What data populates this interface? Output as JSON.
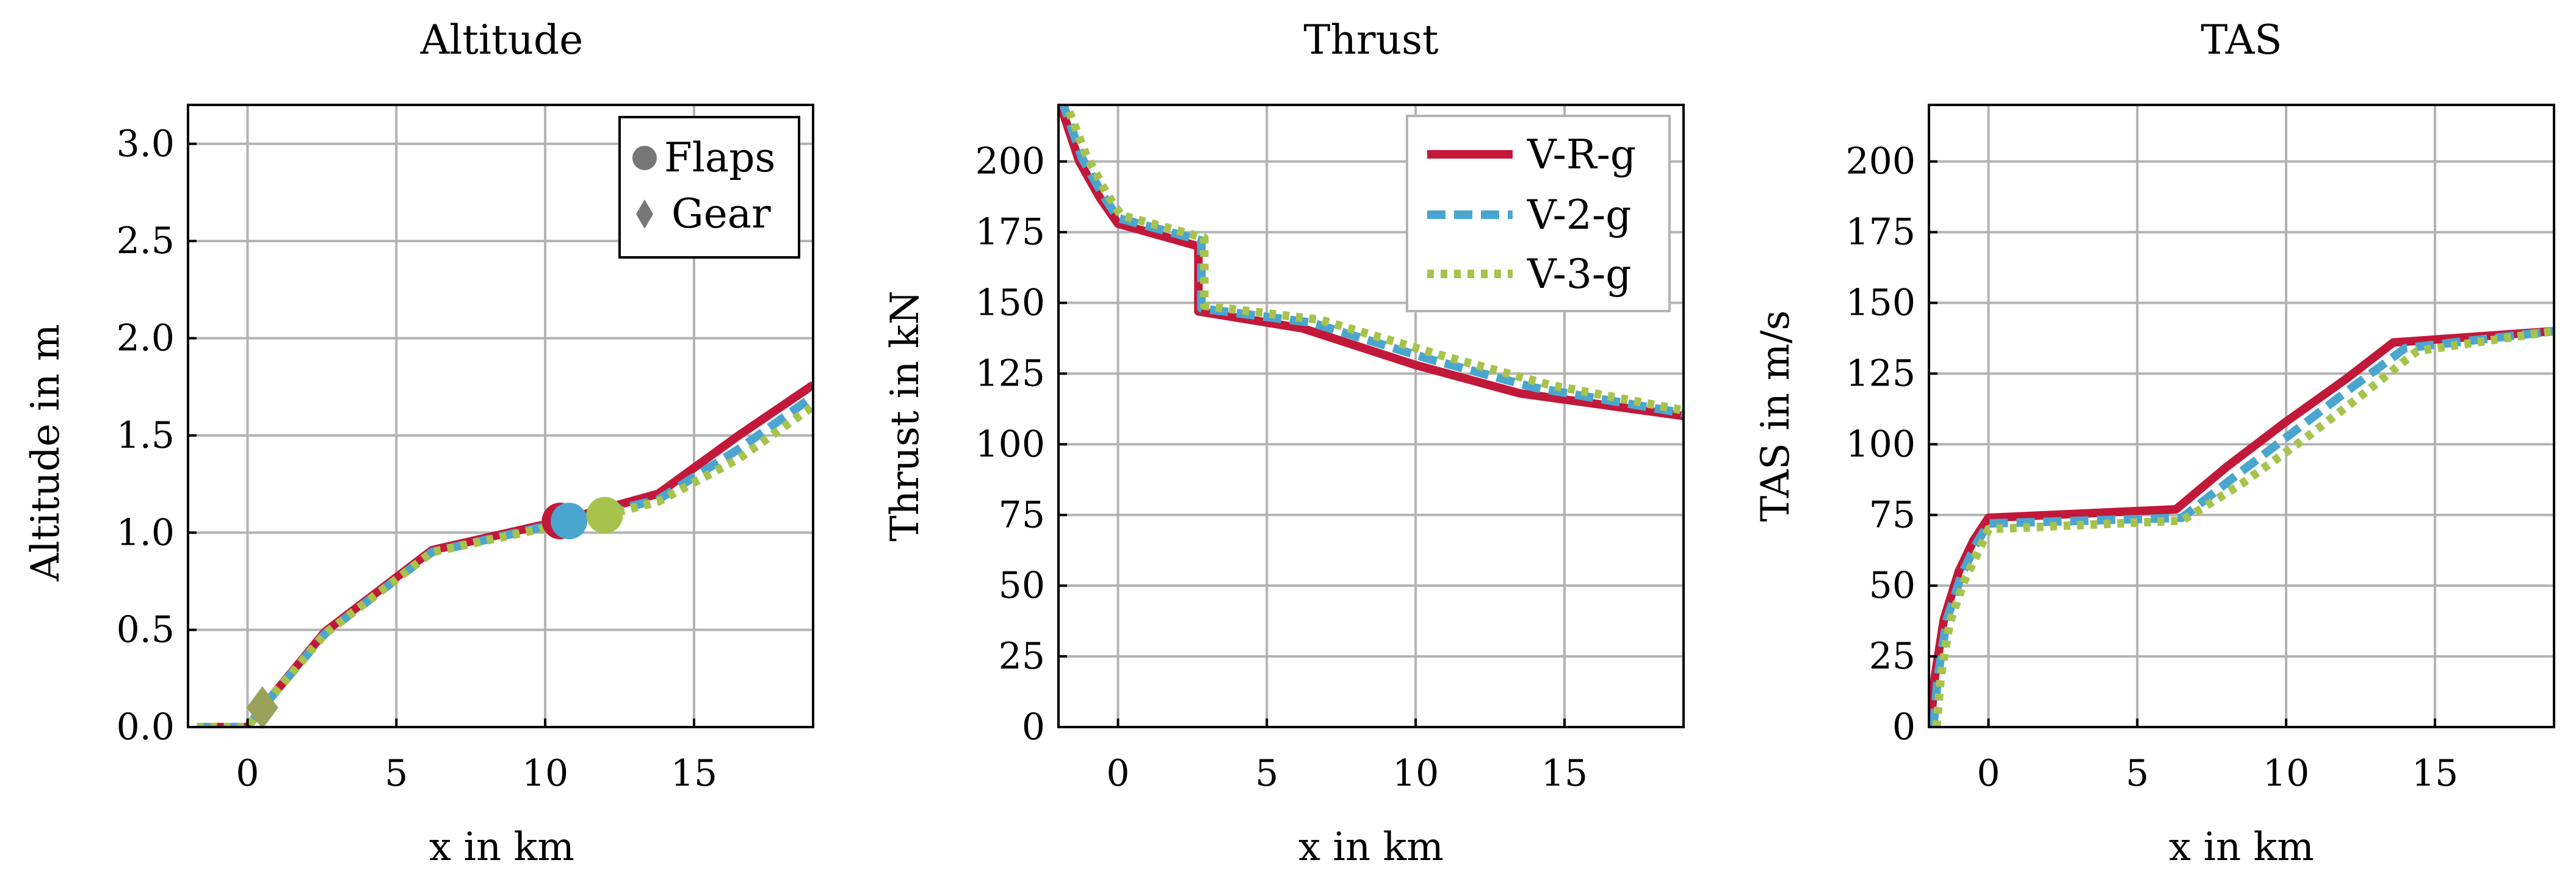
{
  "colors": {
    "V-R-g": "#c2183a",
    "V-2-g": "#4aa6cf",
    "V-3-g": "#a7c34c",
    "gear_marker": "#9aa15a",
    "flaps_legend_marker": "#777777",
    "gear_legend_marker": "#777777"
  },
  "chart_data": [
    {
      "type": "line",
      "title": "Altitude",
      "xlabel": "x in km",
      "ylabel": "Altitude in m",
      "xlim": [
        -2,
        19
      ],
      "ylim": [
        0,
        3.2
      ],
      "xticks": [
        0,
        5,
        10,
        15
      ],
      "yticks": [
        0.0,
        0.5,
        1.0,
        1.5,
        2.0,
        2.5,
        3.0
      ],
      "xtick_labels": [
        "0",
        "5",
        "10",
        "15"
      ],
      "ytick_labels": [
        "0.0",
        "0.5",
        "1.0",
        "1.5",
        "2.0",
        "2.5",
        "3.0"
      ],
      "grid": true,
      "legend": {
        "position": "top-right",
        "entries": [
          "Flaps",
          "Gear"
        ],
        "markers": [
          "circle",
          "diamond"
        ]
      },
      "series": [
        {
          "name": "V-R-g",
          "dash": "solid",
          "x": [
            -1.7,
            0.0,
            0.5,
            2.6,
            6.2,
            10.5,
            13.8,
            16.5,
            19.0
          ],
          "y": [
            0.0,
            0.0,
            0.1,
            0.49,
            0.91,
            1.06,
            1.2,
            1.5,
            1.76
          ]
        },
        {
          "name": "V-2-g",
          "dash": "dashed",
          "x": [
            -1.7,
            0.0,
            0.5,
            2.6,
            6.2,
            10.8,
            13.8,
            16.5,
            19.0
          ],
          "y": [
            0.0,
            0.0,
            0.1,
            0.48,
            0.9,
            1.06,
            1.17,
            1.43,
            1.7
          ]
        },
        {
          "name": "V-3-g",
          "dash": "dotted",
          "x": [
            -1.7,
            0.0,
            0.5,
            2.6,
            6.2,
            12.0,
            13.8,
            16.5,
            19.0
          ],
          "y": [
            0.0,
            0.0,
            0.1,
            0.48,
            0.9,
            1.09,
            1.16,
            1.38,
            1.65
          ]
        }
      ],
      "markers": [
        {
          "kind": "circle",
          "series": "V-R-g",
          "x": 10.5,
          "y": 1.06
        },
        {
          "kind": "circle",
          "series": "V-2-g",
          "x": 10.8,
          "y": 1.06
        },
        {
          "kind": "circle",
          "series": "V-3-g",
          "x": 12.0,
          "y": 1.09
        },
        {
          "kind": "diamond",
          "series": "gear",
          "x": 0.5,
          "y": 0.1
        }
      ]
    },
    {
      "type": "line",
      "title": "Thrust",
      "xlabel": "x in km",
      "ylabel": "Thrust in kN",
      "xlim": [
        -2,
        19
      ],
      "ylim": [
        0,
        220
      ],
      "xticks": [
        0,
        5,
        10,
        15
      ],
      "yticks": [
        0,
        25,
        50,
        75,
        100,
        125,
        150,
        175,
        200
      ],
      "xtick_labels": [
        "0",
        "5",
        "10",
        "15"
      ],
      "ytick_labels": [
        "0",
        "25",
        "50",
        "75",
        "100",
        "125",
        "150",
        "175",
        "200"
      ],
      "grid": true,
      "legend": {
        "position": "top-right",
        "entries": [
          "V-R-g",
          "V-2-g",
          "V-3-g"
        ]
      },
      "series": [
        {
          "name": "V-R-g",
          "dash": "solid",
          "x": [
            -2.0,
            -1.3,
            -0.6,
            0.0,
            2.7,
            2.7,
            6.2,
            10.0,
            13.5,
            19.0
          ],
          "y": [
            222,
            200,
            187,
            178,
            170,
            147,
            141,
            128,
            118,
            110
          ]
        },
        {
          "name": "V-2-g",
          "dash": "dashed",
          "x": [
            -1.9,
            -1.2,
            -0.5,
            0.0,
            2.8,
            2.8,
            6.5,
            10.5,
            14.0,
            19.0
          ],
          "y": [
            222,
            201,
            188,
            180,
            172,
            148,
            143,
            130,
            120,
            111
          ]
        },
        {
          "name": "V-3-g",
          "dash": "dotted",
          "x": [
            -1.8,
            -1.1,
            -0.4,
            0.1,
            2.9,
            2.9,
            6.8,
            11.0,
            14.5,
            19.0
          ],
          "y": [
            222,
            203,
            189,
            181,
            173,
            149,
            144,
            131,
            121,
            112
          ]
        }
      ]
    },
    {
      "type": "line",
      "title": "TAS",
      "xlabel": "x in km",
      "ylabel": "TAS in m/s",
      "xlim": [
        -2,
        19
      ],
      "ylim": [
        0,
        220
      ],
      "xticks": [
        0,
        5,
        10,
        15
      ],
      "yticks": [
        0,
        25,
        50,
        75,
        100,
        125,
        150,
        175,
        200
      ],
      "xtick_labels": [
        "0",
        "5",
        "10",
        "15"
      ],
      "ytick_labels": [
        "0",
        "25",
        "50",
        "75",
        "100",
        "125",
        "150",
        "175",
        "200"
      ],
      "grid": true,
      "series": [
        {
          "name": "V-R-g",
          "dash": "solid",
          "x": [
            -1.95,
            -1.8,
            -1.5,
            -1.0,
            -0.5,
            0.0,
            6.3,
            8.0,
            10.0,
            12.0,
            13.6,
            19.0
          ],
          "y": [
            0,
            18,
            38,
            55,
            66,
            74,
            77,
            92,
            108,
            123,
            136,
            140
          ]
        },
        {
          "name": "V-2-g",
          "dash": "dashed",
          "x": [
            -1.85,
            -1.7,
            -1.4,
            -0.9,
            -0.4,
            0.0,
            6.5,
            8.2,
            10.2,
            12.2,
            14.0,
            19.0
          ],
          "y": [
            0,
            18,
            38,
            54,
            65,
            72,
            74,
            88,
            104,
            120,
            134,
            140
          ]
        },
        {
          "name": "V-3-g",
          "dash": "dotted",
          "x": [
            -1.75,
            -1.6,
            -1.3,
            -0.8,
            -0.3,
            0.0,
            6.5,
            8.5,
            10.5,
            12.5,
            14.4,
            19.0
          ],
          "y": [
            0,
            18,
            37,
            52,
            63,
            70,
            73,
            86,
            101,
            117,
            133,
            140
          ]
        }
      ]
    }
  ]
}
